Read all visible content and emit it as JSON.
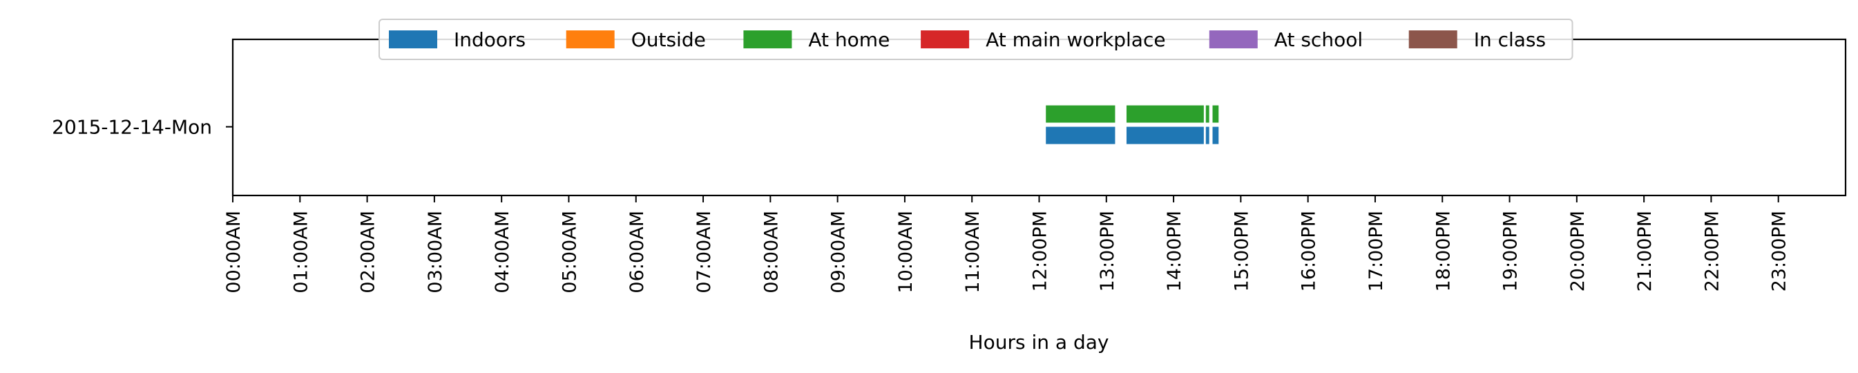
{
  "chart_data": {
    "type": "timeline",
    "title": "",
    "xlabel": "Hours in a day",
    "ylabel": "",
    "xlim": [
      0,
      24
    ],
    "x_ticks": [
      {
        "hour": 0,
        "label": "00:00AM"
      },
      {
        "hour": 1,
        "label": "01:00AM"
      },
      {
        "hour": 2,
        "label": "02:00AM"
      },
      {
        "hour": 3,
        "label": "03:00AM"
      },
      {
        "hour": 4,
        "label": "04:00AM"
      },
      {
        "hour": 5,
        "label": "05:00AM"
      },
      {
        "hour": 6,
        "label": "06:00AM"
      },
      {
        "hour": 7,
        "label": "07:00AM"
      },
      {
        "hour": 8,
        "label": "08:00AM"
      },
      {
        "hour": 9,
        "label": "09:00AM"
      },
      {
        "hour": 10,
        "label": "10:00AM"
      },
      {
        "hour": 11,
        "label": "11:00AM"
      },
      {
        "hour": 12,
        "label": "12:00PM"
      },
      {
        "hour": 13,
        "label": "13:00PM"
      },
      {
        "hour": 14,
        "label": "14:00PM"
      },
      {
        "hour": 15,
        "label": "15:00PM"
      },
      {
        "hour": 16,
        "label": "16:00PM"
      },
      {
        "hour": 17,
        "label": "17:00PM"
      },
      {
        "hour": 18,
        "label": "18:00PM"
      },
      {
        "hour": 19,
        "label": "19:00PM"
      },
      {
        "hour": 20,
        "label": "20:00PM"
      },
      {
        "hour": 21,
        "label": "21:00PM"
      },
      {
        "hour": 22,
        "label": "22:00PM"
      },
      {
        "hour": 23,
        "label": "23:00PM"
      }
    ],
    "days": [
      "2015-12-14-Mon"
    ],
    "legend_position": "top-center",
    "grid": false,
    "series": [
      {
        "name": "Indoors",
        "color": "#1f77b4",
        "segments": [
          [
            12.1,
            13.13
          ],
          [
            13.3,
            14.45
          ],
          [
            14.48,
            14.53
          ],
          [
            14.58,
            14.67
          ]
        ]
      },
      {
        "name": "Outside",
        "color": "#ff7f0e",
        "segments": []
      },
      {
        "name": "At home",
        "color": "#2ca02c",
        "segments": [
          [
            12.1,
            13.13
          ],
          [
            13.3,
            14.45
          ],
          [
            14.48,
            14.53
          ],
          [
            14.58,
            14.67
          ]
        ]
      },
      {
        "name": "At main workplace",
        "color": "#d62728",
        "segments": []
      },
      {
        "name": "At school",
        "color": "#9467bd",
        "segments": []
      },
      {
        "name": "In class",
        "color": "#8c564b",
        "segments": []
      }
    ]
  }
}
